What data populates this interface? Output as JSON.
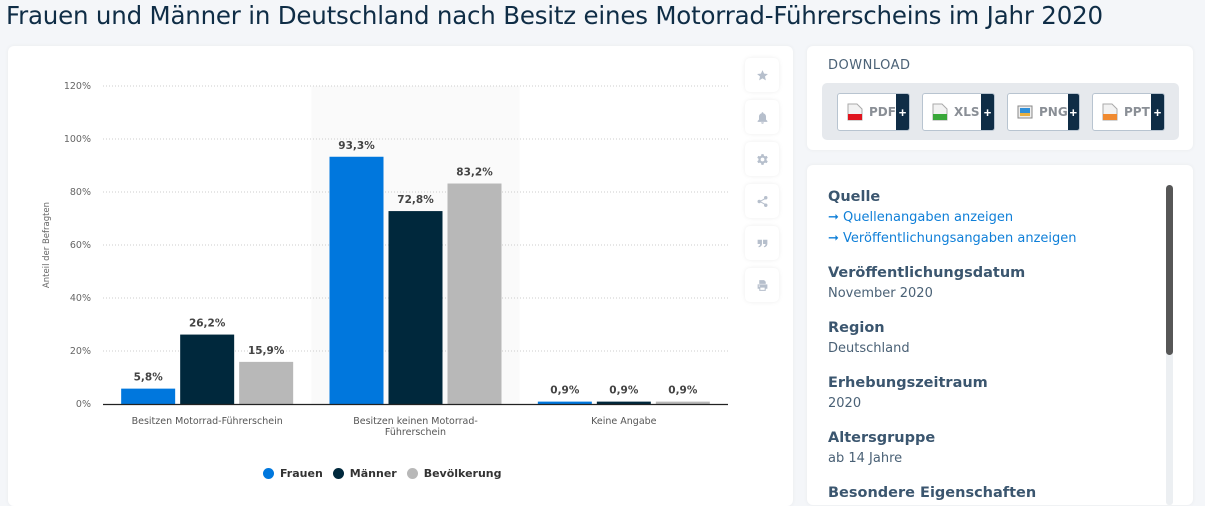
{
  "page": {
    "title": "Frauen und Männer in Deutschland nach Besitz eines Motorrad-Führerscheins im Jahr 2020"
  },
  "chart_data": {
    "type": "bar",
    "title": "Frauen und Männer in Deutschland nach Besitz eines Motorrad-Führerscheins im Jahr 2020",
    "xlabel": "",
    "ylabel": "Anteil der Befragten",
    "ylim": [
      0,
      120
    ],
    "yticks": [
      0,
      20,
      40,
      60,
      80,
      100,
      120
    ],
    "ytick_labels": [
      "0%",
      "20%",
      "40%",
      "60%",
      "80%",
      "100%",
      "120%"
    ],
    "grid": true,
    "legend_position": "bottom-center",
    "categories": [
      "Besitzen Motorrad-Führerschein",
      "Besitzen keinen Motorrad-Führerschein",
      "Keine Angabe"
    ],
    "category_label_lines": [
      [
        "Besitzen Motorrad-Führerschein"
      ],
      [
        "Besitzen keinen Motorrad-",
        "Führerschein"
      ],
      [
        "Keine Angabe"
      ]
    ],
    "highlighted_category": 1,
    "series": [
      {
        "name": "Frauen",
        "color": "#0077dd",
        "values": [
          5.8,
          93.3,
          0.9
        ],
        "labels": [
          "5,8%",
          "93,3%",
          "0,9%"
        ]
      },
      {
        "name": "Männer",
        "color": "#00283c",
        "values": [
          26.2,
          72.8,
          0.9
        ],
        "labels": [
          "26,2%",
          "72,8%",
          "0,9%"
        ]
      },
      {
        "name": "Bevölkerung",
        "color": "#b8b8b8",
        "values": [
          15.9,
          83.2,
          0.9
        ],
        "labels": [
          "15,9%",
          "83,2%",
          "0,9%"
        ]
      }
    ]
  },
  "toolbar": {
    "items": [
      {
        "name": "favorite",
        "icon": "star-icon"
      },
      {
        "name": "notification",
        "icon": "bell-icon"
      },
      {
        "name": "settings",
        "icon": "gear-icon"
      },
      {
        "name": "share",
        "icon": "share-icon"
      },
      {
        "name": "cite",
        "icon": "quote-icon"
      },
      {
        "name": "print",
        "icon": "print-icon"
      }
    ]
  },
  "download": {
    "title": "DOWNLOAD",
    "buttons": [
      {
        "label": "PDF",
        "icon": "pdf-file-icon",
        "accent": "#e0141e",
        "plus": "+"
      },
      {
        "label": "XLS",
        "icon": "xls-file-icon",
        "accent": "#3aa83a",
        "plus": "+"
      },
      {
        "label": "PNG",
        "icon": "png-image-icon",
        "accent": "#2f8fd8",
        "plus": "+"
      },
      {
        "label": "PPT",
        "icon": "ppt-file-icon",
        "accent": "#f08a30",
        "plus": "+"
      }
    ]
  },
  "info": {
    "source": {
      "heading": "Quelle",
      "links": [
        "Quellenangaben anzeigen",
        "Veröffentlichungsangaben anzeigen"
      ],
      "arrow": "➞"
    },
    "publication_date": {
      "heading": "Veröffentlichungsdatum",
      "value": "November 2020"
    },
    "region": {
      "heading": "Region",
      "value": "Deutschland"
    },
    "survey_period": {
      "heading": "Erhebungszeitraum",
      "value": "2020"
    },
    "age_group": {
      "heading": "Altersgruppe",
      "value": "ab 14 Jahre"
    },
    "next_heading_partial": "Besondere Eigenschaften"
  }
}
